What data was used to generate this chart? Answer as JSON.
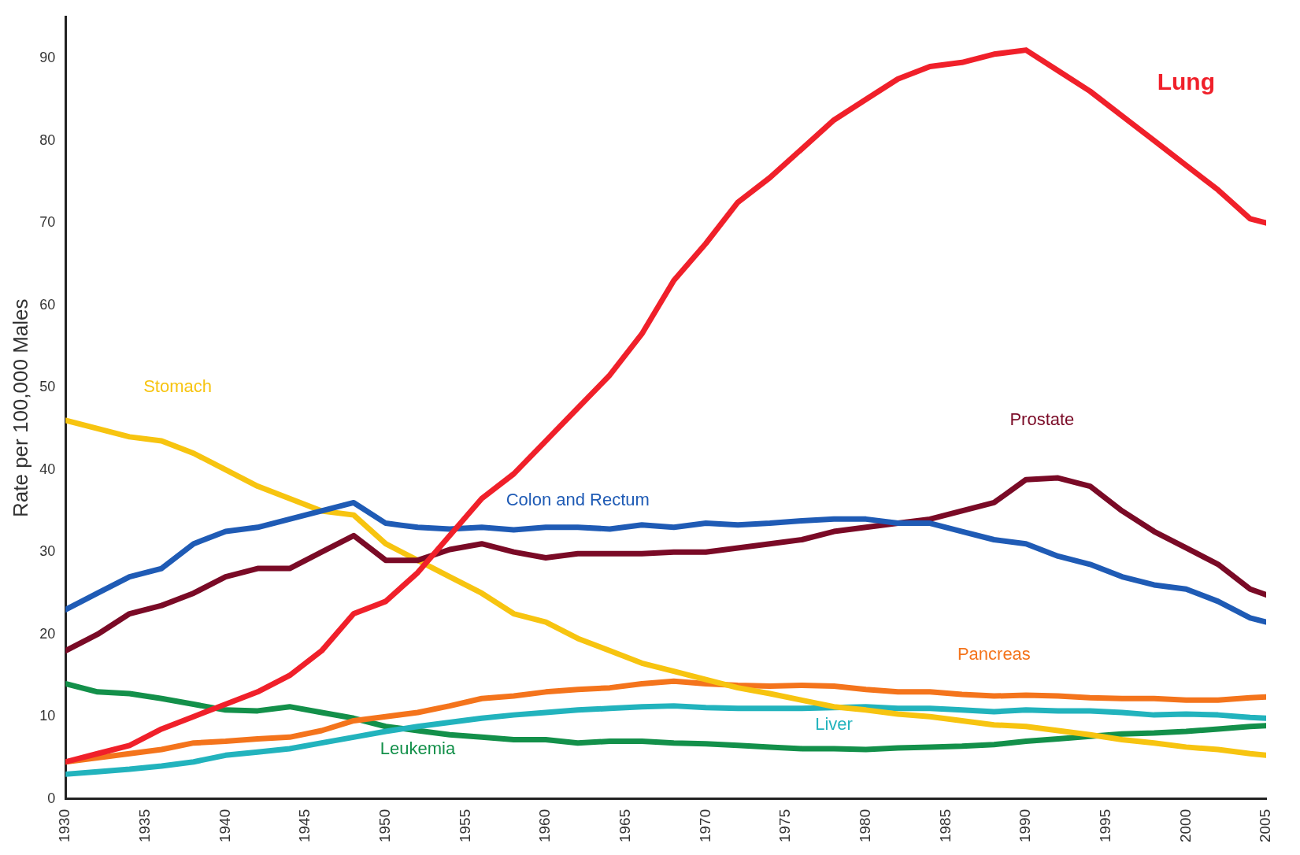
{
  "chart_data": {
    "type": "line",
    "ylabel": "Rate per 100,000 Males",
    "x": [
      1930,
      1932,
      1934,
      1936,
      1938,
      1940,
      1942,
      1944,
      1946,
      1948,
      1950,
      1952,
      1954,
      1956,
      1958,
      1960,
      1962,
      1964,
      1966,
      1968,
      1970,
      1972,
      1974,
      1976,
      1978,
      1980,
      1982,
      1984,
      1986,
      1988,
      1990,
      1992,
      1994,
      1996,
      1998,
      2000,
      2002,
      2004,
      2005
    ],
    "xlim": [
      1930,
      2005
    ],
    "xticks": [
      1930,
      1935,
      1940,
      1945,
      1950,
      1955,
      1960,
      1965,
      1970,
      1975,
      1980,
      1985,
      1990,
      1995,
      2000,
      2005
    ],
    "ylim": [
      0,
      95
    ],
    "yticks": [
      0,
      10,
      20,
      30,
      40,
      50,
      60,
      70,
      80,
      90
    ],
    "grid": false,
    "legend": false,
    "marker": "none",
    "line_style": "solid",
    "series": [
      {
        "name": "Lung",
        "color": "#f0202a",
        "values": [
          4.5,
          5.5,
          6.5,
          8.5,
          10,
          11.5,
          13,
          15,
          18,
          22.5,
          24,
          27.5,
          32,
          36.5,
          39.5,
          43.5,
          47.5,
          51.5,
          56.5,
          63,
          67.5,
          72.5,
          75.5,
          79,
          82.5,
          85,
          87.5,
          89,
          89.5,
          90.5,
          91,
          88.5,
          86,
          83,
          80,
          77,
          74,
          70.5,
          70
        ]
      },
      {
        "name": "Colon and Rectum",
        "color": "#1f5bb5",
        "values": [
          23,
          25,
          27,
          28,
          31,
          32.5,
          33,
          34,
          35,
          36,
          33.5,
          33,
          32.8,
          33,
          32.7,
          33,
          33,
          32.8,
          33.3,
          33,
          33.5,
          33.3,
          33.5,
          33.8,
          34,
          34,
          33.5,
          33.5,
          32.5,
          31.5,
          31,
          29.5,
          28.5,
          27,
          26,
          25.5,
          24,
          22,
          21.5
        ]
      },
      {
        "name": "Prostate",
        "color": "#7a0a26",
        "values": [
          18,
          20,
          22.5,
          23.5,
          25,
          27,
          28,
          28,
          30,
          32,
          29,
          29,
          30.3,
          31,
          30,
          29.3,
          29.8,
          29.8,
          29.8,
          30,
          30,
          30.5,
          31,
          31.5,
          32.5,
          33,
          33.5,
          34,
          35,
          36,
          38.8,
          39,
          38,
          35,
          32.5,
          30.5,
          28.5,
          25.5,
          24.8
        ]
      },
      {
        "name": "Stomach",
        "color": "#f7c410",
        "values": [
          46,
          45,
          44,
          43.5,
          42,
          40,
          38,
          36.5,
          35,
          34.5,
          31,
          29,
          27,
          25,
          22.5,
          21.5,
          19.5,
          18,
          16.5,
          15.5,
          14.5,
          13.5,
          12.8,
          12,
          11.2,
          10.8,
          10.3,
          10,
          9.5,
          9,
          8.8,
          8.3,
          7.8,
          7.2,
          6.8,
          6.3,
          6,
          5.5,
          5.3
        ]
      },
      {
        "name": "Pancreas",
        "color": "#f4741c",
        "values": [
          4.5,
          5,
          5.5,
          6,
          6.8,
          7,
          7.3,
          7.5,
          8.3,
          9.5,
          10,
          10.5,
          11.3,
          12.2,
          12.5,
          13,
          13.3,
          13.5,
          14,
          14.3,
          14,
          13.8,
          13.7,
          13.8,
          13.7,
          13.3,
          13,
          13,
          12.7,
          12.5,
          12.6,
          12.5,
          12.3,
          12.2,
          12.2,
          12,
          12,
          12.3,
          12.4
        ]
      },
      {
        "name": "Liver",
        "color": "#22b3bd",
        "values": [
          3,
          3.3,
          3.6,
          4,
          4.5,
          5.3,
          5.7,
          6.1,
          6.8,
          7.5,
          8.2,
          8.8,
          9.3,
          9.8,
          10.2,
          10.5,
          10.8,
          11,
          11.2,
          11.3,
          11.1,
          11,
          11,
          11,
          11.1,
          11.2,
          11,
          11,
          10.8,
          10.6,
          10.8,
          10.7,
          10.7,
          10.5,
          10.2,
          10.3,
          10.2,
          9.9,
          9.8
        ]
      },
      {
        "name": "Leukemia",
        "color": "#13904a",
        "values": [
          14,
          13,
          12.8,
          12.2,
          11.5,
          10.8,
          10.7,
          11.2,
          10.5,
          9.8,
          8.8,
          8.3,
          7.8,
          7.5,
          7.2,
          7.2,
          6.8,
          7,
          7,
          6.8,
          6.7,
          6.5,
          6.3,
          6.1,
          6.1,
          6,
          6.2,
          6.3,
          6.4,
          6.6,
          7,
          7.3,
          7.6,
          7.9,
          8,
          8.2,
          8.5,
          8.8,
          8.9
        ]
      }
    ]
  }
}
